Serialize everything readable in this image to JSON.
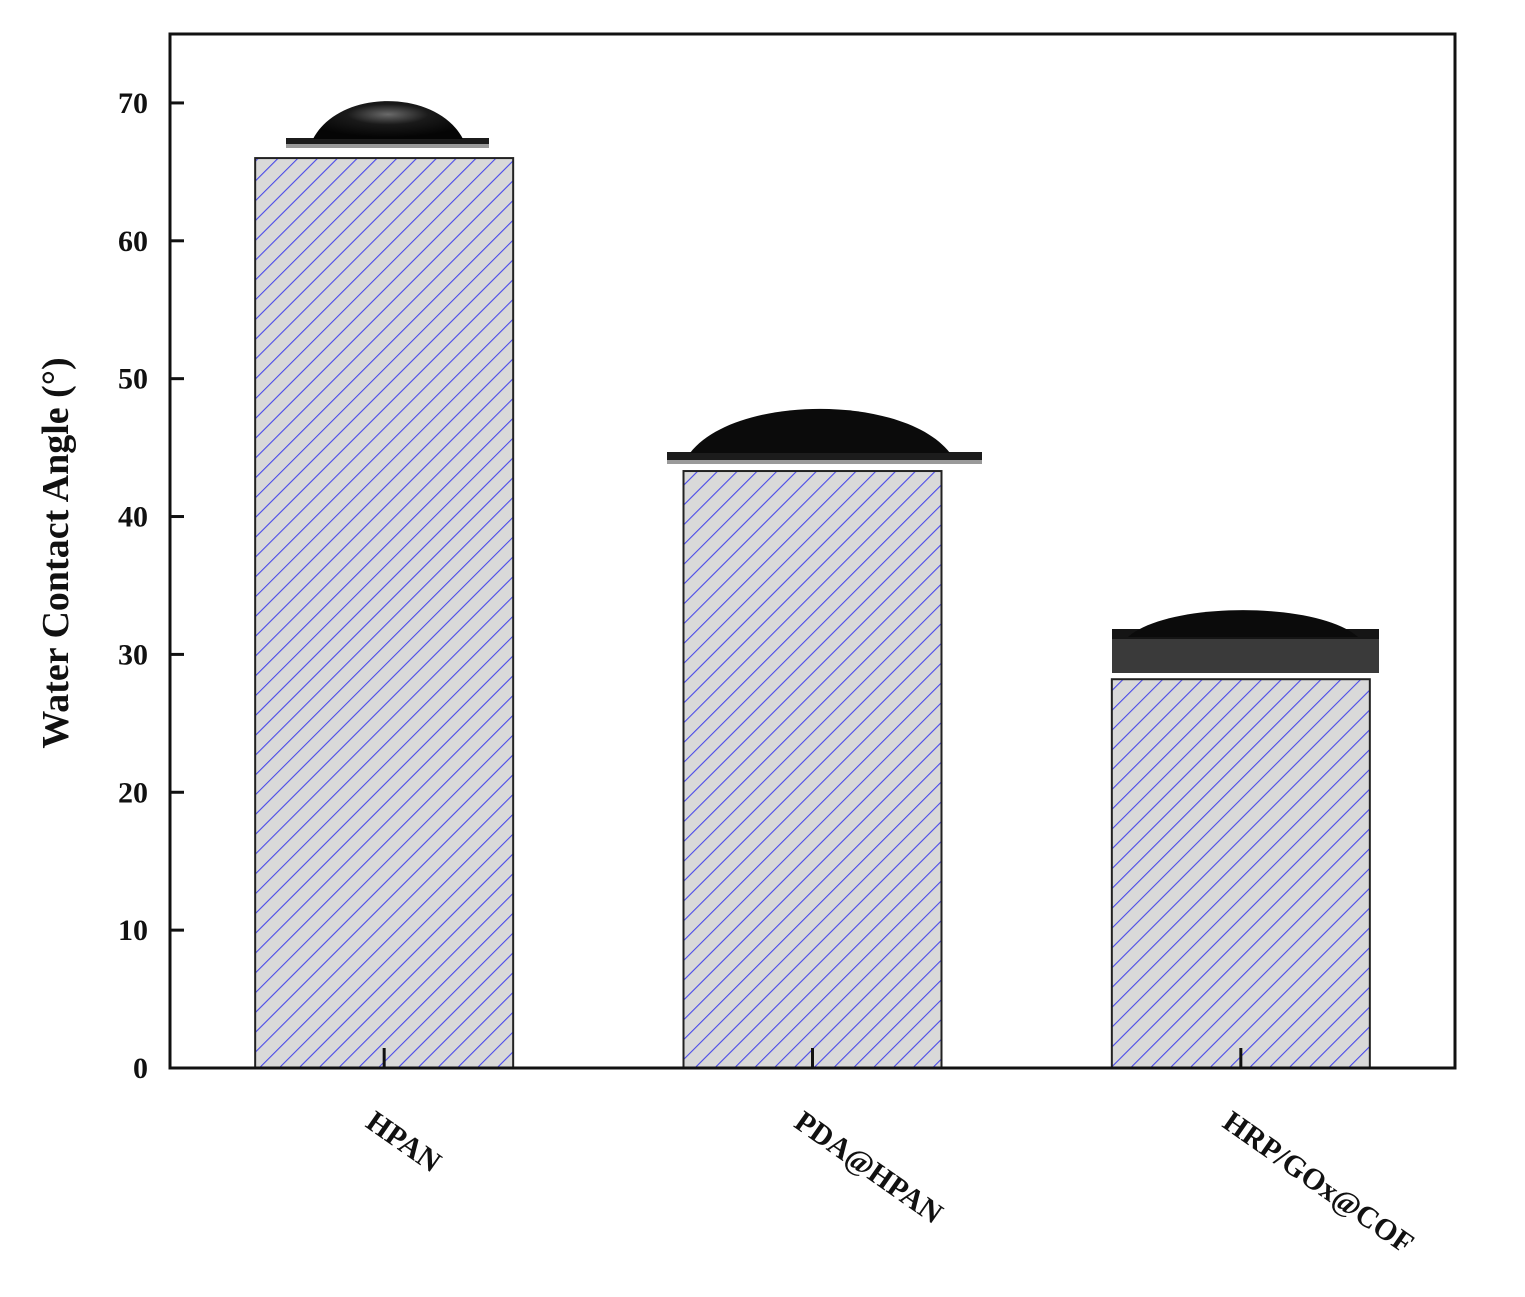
{
  "chart_data": {
    "type": "bar",
    "title": "",
    "xlabel": "",
    "ylabel": "Water Contact Angle (°)",
    "categories": [
      "HPAN",
      "PDA@HPAN",
      "HRP/GOx@COF"
    ],
    "values": [
      66.0,
      43.3,
      28.2
    ],
    "ylim": [
      0,
      75
    ],
    "yticks": [
      0,
      10,
      20,
      30,
      40,
      50,
      60,
      70
    ],
    "grid": false,
    "legend": "none",
    "bar_fill": "#d9d9d9",
    "hatch_color": "#4a4ae8",
    "inset_images": [
      "water-droplet-photo",
      "water-droplet-photo",
      "water-droplet-photo"
    ]
  }
}
